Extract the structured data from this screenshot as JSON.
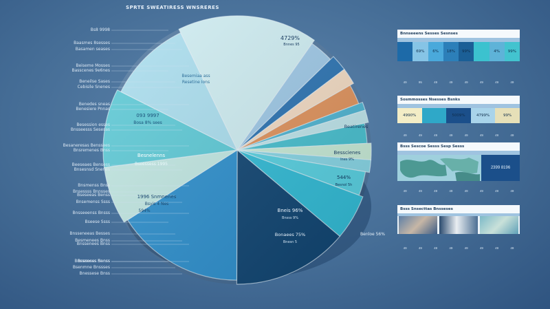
{
  "title": "SPRTE SWEATIRESS WNSRERES",
  "chart_data": {
    "type": "pie",
    "slices": [
      {
        "label": "",
        "value": 17,
        "color": "#cfeef3"
      },
      {
        "label": "4729%",
        "value": 3,
        "color": "#9ec9e8"
      },
      {
        "label": "",
        "value": 2,
        "color": "#2a73b3"
      },
      {
        "label": "",
        "value": 2,
        "color": "#f4dcc4"
      },
      {
        "label": "",
        "value": 2.5,
        "color": "#e1935c"
      },
      {
        "label": "",
        "value": 1,
        "color": "#4fb6d4"
      },
      {
        "label": "",
        "value": 1.5,
        "color": "#bfe6ec"
      },
      {
        "label": "",
        "value": 2.5,
        "color": "#47c1d1"
      },
      {
        "label": "Beatirenes",
        "value": 2,
        "color": "#c8ecd8"
      },
      {
        "label": "",
        "value": 1.5,
        "color": "#88d7e7"
      },
      {
        "label": "Besscienes",
        "value": 3,
        "color": "#58d2e3"
      },
      {
        "label": "544%",
        "value": 5.5,
        "color": "#31bdd8"
      },
      {
        "label": "Bneis 96%",
        "value": 14,
        "color": "#0f4573"
      },
      {
        "label": "",
        "value": 16,
        "color": "#2c90cf"
      },
      {
        "label": "1996 Snmnenes",
        "value": 7,
        "color": "#c2e9e4"
      },
      {
        "label": "Besnelenns",
        "value": 9.5,
        "color": "#5ccbd8"
      },
      {
        "label": "093 9997",
        "value": 10.5,
        "color": "#aadff0"
      }
    ],
    "inner_labels": {
      "top_left": "Besemiaa ass",
      "top_left_sub": "Resetine Ions",
      "mid_left": "093 9997",
      "mid_left_sub": "Bosa 8% sees",
      "mid2": "Besnelenns",
      "mid2_sub": "Bseessess 1995",
      "lower_left": "1996 Snmnenes",
      "lower_left_sub": "Bsyis 4 Nes",
      "lower_left_pct": "594%",
      "right1": "Beatirenes",
      "right2": "Besscienes",
      "right2_sub": "Ines 9%",
      "right3": "544%",
      "right3_sub": "Besnol 5h",
      "bottom1": "Bneis 96%",
      "bottom1_sub": "Bnsss 9%",
      "bottom2": "Bonaees 75%",
      "bottom2_sub": "Bnesn 5",
      "bottom_right": "Benloe 56%",
      "top_pct": "4729%",
      "top_pct_sub": "Bnnes 95"
    },
    "xlabel": "",
    "ylabel": "",
    "legend": "none"
  },
  "side_labels": [
    "Bs8 9998",
    "Baasmes 8sesses",
    "Basamen seases",
    "Beiseme Mosses",
    "Basscenes 9e6nes",
    "Beneilse Sases",
    "Cebisile Snenes",
    "Benedes sneas",
    "Benesiere Pnnas",
    "Besession esses",
    "Bnsseesss Sesesas",
    "Besaneresas Benssees",
    "Bnsremenes Bnss",
    "Beeseaes Bensess",
    "Bnsesnsd Snenes",
    "Bnsmenss Bnss",
    "Bnsessss Bnnsses",
    "Bseseeas Benss",
    "Bnsemenss Ssss",
    "Bnsseeenss Bnsss",
    "Bseese Ssss",
    "Bnsseneeas Besses",
    "Besmenees Bnss",
    "Bnssenees Bnss",
    "Bnssenees Senss",
    "Bsenmne Bnssses",
    "Bnessese Bnss",
    "Bnssesss Bnnss"
  ],
  "panels": [
    {
      "head": "Bnnseeens Sesses Sesnses",
      "cells": [
        "",
        "69%",
        "6%",
        "18%",
        "99%",
        "",
        "4%",
        "99%"
      ],
      "cell_colors": [
        "#1d6aa8",
        "#86c4e6",
        "#4aa9db",
        "#2c7fb9",
        "#1b5f96",
        "#3cc2cf",
        "#5eb3d8",
        "#43c3cf"
      ],
      "ticks": [
        "49",
        "95",
        "49",
        "49",
        "49",
        "49",
        "49",
        "49"
      ]
    },
    {
      "head": "Sosmmosses Nsesses Bsnks",
      "cells": [
        "4990%",
        "",
        "5009%",
        "4799%",
        "99%"
      ],
      "cell_colors": [
        "#f3edc6",
        "#2fa8c8",
        "#1b4f8a",
        "#a9d4ea",
        "#e6e0b8"
      ],
      "ticks": [
        "49",
        "49",
        "49",
        "49",
        "49",
        "49",
        "49",
        "49"
      ]
    },
    {
      "head": "Bsss Sescoe Sesss Sesp Sesss",
      "map_label": "2399 8196",
      "ticks": [
        "49",
        "49",
        "49",
        "49",
        "49",
        "49",
        "49",
        "49"
      ]
    },
    {
      "head": "Bsss Snsecttas Bnsseses",
      "ticks": [
        "49",
        "49",
        "49",
        "49",
        "49",
        "49",
        "49",
        "49"
      ]
    }
  ]
}
